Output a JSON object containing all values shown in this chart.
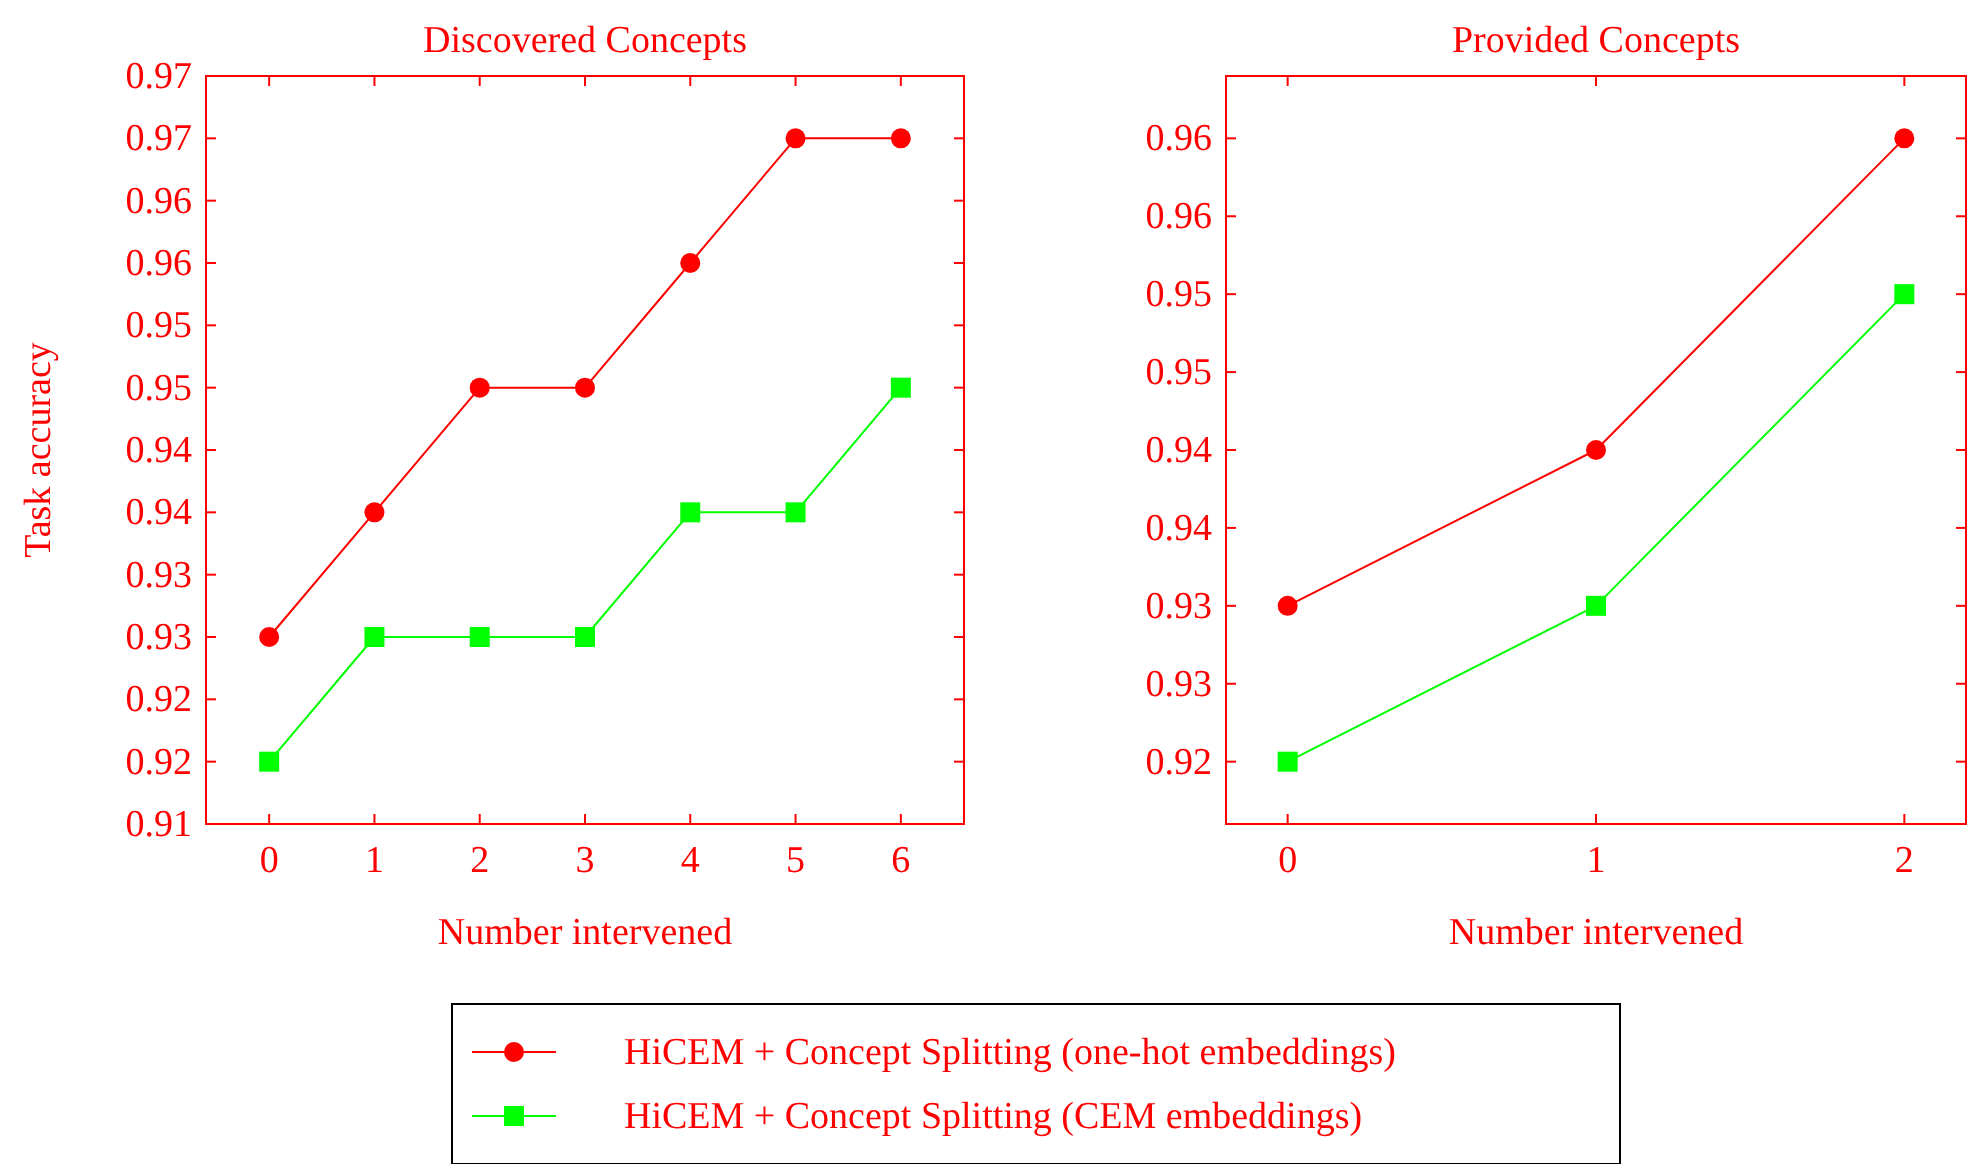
{
  "chart_data": [
    {
      "type": "line",
      "title": "Discovered Concepts",
      "xlabel": "Number intervened",
      "ylabel": "Task accuracy",
      "x": [
        0,
        1,
        2,
        3,
        4,
        5,
        6
      ],
      "xlim": [
        -0.6,
        6.6
      ],
      "xticks": [
        0,
        1,
        2,
        3,
        4,
        5,
        6
      ],
      "ylim": [
        0.91,
        0.97
      ],
      "yticks": [
        0.91,
        {
          "value": 0.915,
          "label": "0.92"
        },
        0.92,
        {
          "value": 0.925,
          "label": "0.93"
        },
        0.93,
        {
          "value": 0.935,
          "label": "0.94"
        },
        0.94,
        {
          "value": 0.945,
          "label": "0.95"
        },
        0.95,
        {
          "value": 0.955,
          "label": "0.96"
        },
        0.96,
        {
          "value": 0.965,
          "label": "0.97"
        },
        0.97
      ],
      "grid": false,
      "legend": "bottom",
      "series": [
        {
          "name": "HiCEM + Concept Splitting (one-hot embeddings)",
          "color": "#ff0000",
          "marker": "circle",
          "values": [
            0.925,
            0.935,
            0.945,
            0.945,
            0.955,
            0.965,
            0.965
          ]
        },
        {
          "name": "HiCEM + Concept Splitting (CEM embeddings)",
          "color": "#00ff00",
          "marker": "square",
          "values": [
            0.915,
            0.925,
            0.925,
            0.925,
            0.935,
            0.935,
            0.945
          ]
        }
      ]
    },
    {
      "type": "line",
      "title": "Provided Concepts",
      "xlabel": "Number intervened",
      "x": [
        0,
        1,
        2
      ],
      "xlim": [
        -0.2,
        2.2
      ],
      "xticks": [
        0,
        1,
        2
      ],
      "ylim": [
        0.916,
        0.964
      ],
      "yticks": [
        0.92,
        {
          "value": 0.925,
          "label": "0.93"
        },
        0.93,
        {
          "value": 0.935,
          "label": "0.94"
        },
        0.94,
        {
          "value": 0.945,
          "label": "0.95"
        },
        0.95,
        {
          "value": 0.955,
          "label": "0.96"
        },
        0.96
      ],
      "grid": false,
      "series": [
        {
          "color": "#ff0000",
          "marker": "circle",
          "values": [
            0.93,
            0.94,
            0.96
          ]
        },
        {
          "color": "#00ff00",
          "marker": "square",
          "values": [
            0.92,
            0.93,
            0.95
          ]
        }
      ]
    }
  ]
}
